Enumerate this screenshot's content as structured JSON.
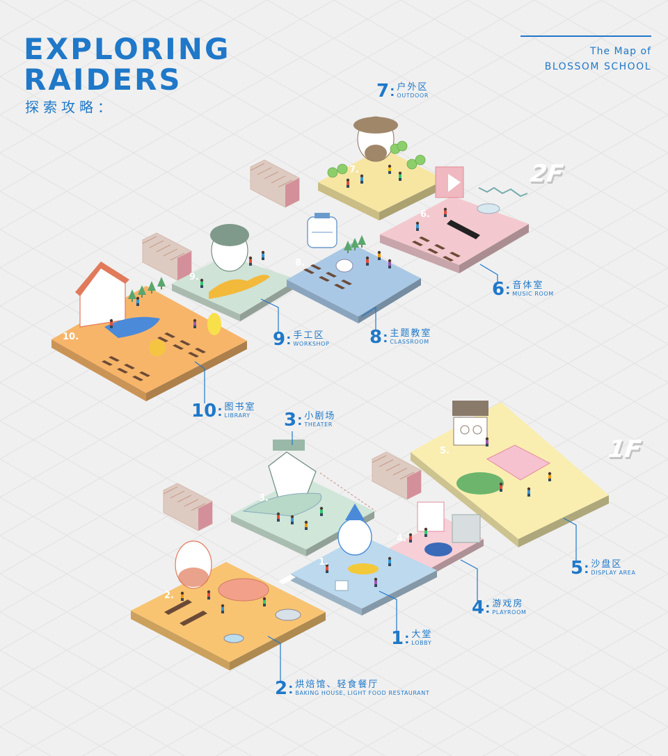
{
  "header": {
    "title_line1": "EXPLORING",
    "title_line2": "RAIDERS",
    "title_cn": "探索攻略：",
    "map_of": "The Map of",
    "school": "BLOSSOM SCHOOL"
  },
  "floors": {
    "upper": "2F",
    "lower": "1F"
  },
  "areas": [
    {
      "num": "7",
      "cn": "户外区",
      "en": "OUTDOOR",
      "tag": "7."
    },
    {
      "num": "6",
      "cn": "音体室",
      "en": "MUSIC ROOM",
      "tag": "6."
    },
    {
      "num": "9",
      "cn": "手工区",
      "en": "WORKSHOP",
      "tag": "9."
    },
    {
      "num": "8",
      "cn": "主题教室",
      "en": "CLASSROOM",
      "tag": "8."
    },
    {
      "num": "10",
      "cn": "图书室",
      "en": "LIBRARY",
      "tag": "10."
    },
    {
      "num": "3",
      "cn": "小剧场",
      "en": "THEATER",
      "tag": "3."
    },
    {
      "num": "5",
      "cn": "沙盘区",
      "en": "DISPLAY AREA",
      "tag": "5."
    },
    {
      "num": "4",
      "cn": "游戏房",
      "en": "PLAYROOM",
      "tag": "4."
    },
    {
      "num": "1",
      "cn": "大堂",
      "en": "LOBBY",
      "tag": "1."
    },
    {
      "num": "2",
      "cn": "烘焙馆、轻食餐厅",
      "en": "BAKING HOUSE, LIGHT FOOD RESTAURANT",
      "tag": "2."
    }
  ],
  "colors": {
    "accent": "#1f78c8",
    "background": "#f0f0f0",
    "outdoor": "#f6e6a2",
    "music_room": "#f3c9cf",
    "workshop": "#cfe3d6",
    "classroom": "#a9c8e6",
    "library": "#f7b56a",
    "theater": "#cfe6d8",
    "display_area": "#f9eeb0",
    "playroom": "#f7cfd6",
    "lobby": "#bcd9ee",
    "baking_house": "#f8c472",
    "stairs": "#f5e1d7"
  }
}
